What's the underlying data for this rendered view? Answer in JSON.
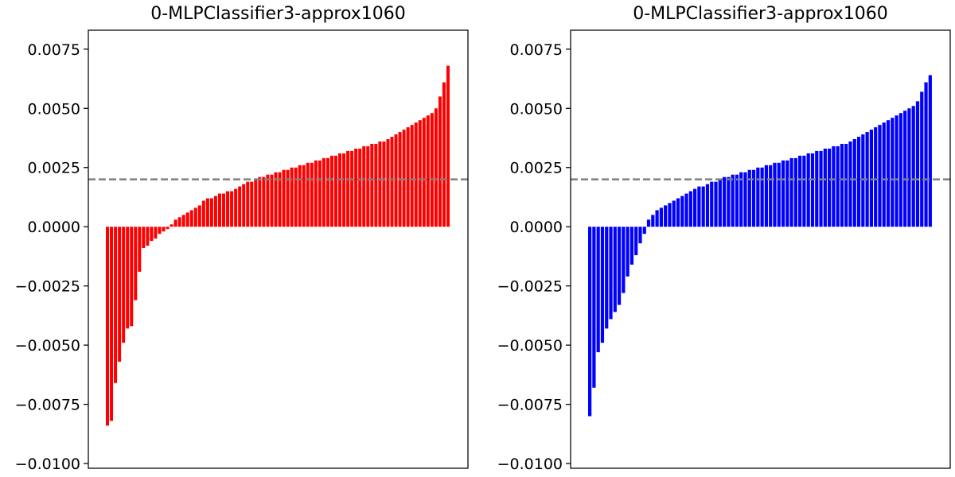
{
  "chart_data": [
    {
      "type": "bar",
      "title": "0-MLPClassifier3-approx1060",
      "xlabel": "",
      "ylabel": "",
      "ylim": [
        -0.0102,
        0.0083
      ],
      "yticks": [
        "0.0075",
        "0.0050",
        "0.0025",
        "0.0000",
        "−0.0025",
        "−0.0050",
        "−0.0075",
        "−0.0100"
      ],
      "ytick_values": [
        0.0075,
        0.005,
        0.0025,
        0.0,
        -0.0025,
        -0.005,
        -0.0075,
        -0.01
      ],
      "grid": false,
      "bar_color": "#ff0000",
      "reference_line": {
        "y": 0.002,
        "style": "dashed",
        "color": "#808080"
      },
      "sorted_ascending": true,
      "values": [
        -0.0084,
        -0.0082,
        -0.0066,
        -0.0057,
        -0.0049,
        -0.0043,
        -0.0042,
        -0.0031,
        -0.0019,
        -0.0009,
        -0.0008,
        -0.0006,
        -0.0005,
        -0.0003,
        -0.0002,
        -0.0001,
        0.0001,
        0.0003,
        0.0004,
        0.0005,
        0.0006,
        0.0007,
        0.0008,
        0.0009,
        0.0011,
        0.0012,
        0.0012,
        0.0013,
        0.0014,
        0.0014,
        0.0015,
        0.0015,
        0.0016,
        0.0017,
        0.0018,
        0.0019,
        0.0019,
        0.002,
        0.0021,
        0.0021,
        0.0022,
        0.0022,
        0.0023,
        0.0023,
        0.0024,
        0.0024,
        0.0025,
        0.0025,
        0.0026,
        0.0026,
        0.0027,
        0.0027,
        0.0028,
        0.0028,
        0.0029,
        0.0029,
        0.003,
        0.003,
        0.0031,
        0.0031,
        0.0032,
        0.0032,
        0.0033,
        0.0033,
        0.0034,
        0.0034,
        0.0035,
        0.0035,
        0.0036,
        0.0036,
        0.0037,
        0.0038,
        0.0039,
        0.004,
        0.0041,
        0.0042,
        0.0043,
        0.0044,
        0.0045,
        0.0046,
        0.0047,
        0.0048,
        0.005,
        0.0055,
        0.0061,
        0.0068
      ]
    },
    {
      "type": "bar",
      "title": "0-MLPClassifier3-approx1060",
      "xlabel": "",
      "ylabel": "",
      "ylim": [
        -0.0102,
        0.0083
      ],
      "yticks": [
        "0.0075",
        "0.0050",
        "0.0025",
        "0.0000",
        "−0.0025",
        "−0.0050",
        "−0.0075",
        "−0.0100"
      ],
      "ytick_values": [
        0.0075,
        0.005,
        0.0025,
        0.0,
        -0.0025,
        -0.005,
        -0.0075,
        -0.01
      ],
      "grid": false,
      "bar_color": "#0000ff",
      "reference_line": {
        "y": 0.002,
        "style": "dashed",
        "color": "#808080"
      },
      "sorted_ascending": true,
      "values": [
        -0.008,
        -0.0068,
        -0.0053,
        -0.0049,
        -0.0043,
        -0.0039,
        -0.0036,
        -0.0033,
        -0.0028,
        -0.0021,
        -0.0016,
        -0.0012,
        -0.0007,
        -0.0003,
        0.0003,
        0.0005,
        0.0007,
        0.0008,
        0.0009,
        0.001,
        0.0011,
        0.0012,
        0.0013,
        0.0014,
        0.0015,
        0.0016,
        0.0017,
        0.0017,
        0.0018,
        0.0019,
        0.0019,
        0.002,
        0.0021,
        0.0021,
        0.0022,
        0.0022,
        0.0023,
        0.0023,
        0.0024,
        0.0024,
        0.0025,
        0.0025,
        0.0026,
        0.0026,
        0.0027,
        0.0027,
        0.0028,
        0.0028,
        0.0029,
        0.0029,
        0.003,
        0.003,
        0.0031,
        0.0031,
        0.0032,
        0.0032,
        0.0033,
        0.0033,
        0.0034,
        0.0034,
        0.0035,
        0.0035,
        0.0036,
        0.0037,
        0.0038,
        0.0039,
        0.004,
        0.0041,
        0.0042,
        0.0043,
        0.0044,
        0.0045,
        0.0046,
        0.0047,
        0.0048,
        0.0049,
        0.005,
        0.0051,
        0.0053,
        0.0057,
        0.0061,
        0.0064
      ]
    }
  ]
}
